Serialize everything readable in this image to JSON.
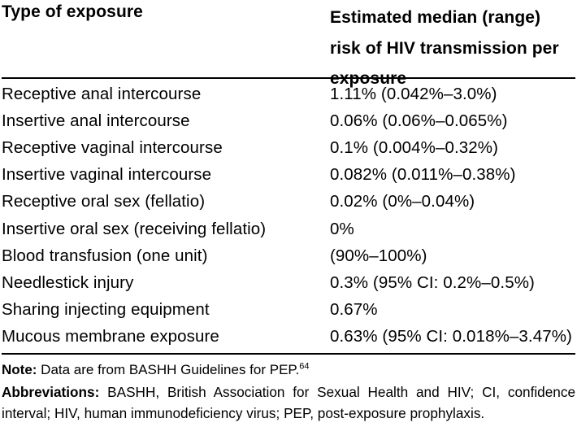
{
  "table": {
    "header": {
      "col1": "Type of exposure",
      "col2": "Estimated median (range) risk of HIV transmission per exposure"
    },
    "rows": [
      {
        "exposure": "Receptive anal intercourse",
        "risk": "1.11% (0.042%–3.0%)"
      },
      {
        "exposure": "Insertive anal intercourse",
        "risk": "0.06% (0.06%–0.065%)"
      },
      {
        "exposure": "Receptive vaginal intercourse",
        "risk": "0.1% (0.004%–0.32%)"
      },
      {
        "exposure": "Insertive vaginal intercourse",
        "risk": "0.082% (0.011%–0.38%)"
      },
      {
        "exposure": "Receptive oral sex (fellatio)",
        "risk": "0.02% (0%–0.04%)"
      },
      {
        "exposure": "Insertive oral sex (receiving fellatio)",
        "risk": "0%"
      },
      {
        "exposure": "Blood transfusion (one unit)",
        "risk": "(90%–100%)"
      },
      {
        "exposure": "Needlestick injury",
        "risk": "0.3% (95% CI: 0.2%–0.5%)"
      },
      {
        "exposure": "Sharing injecting equipment",
        "risk": "0.67%"
      },
      {
        "exposure": "Mucous membrane exposure",
        "risk": "0.63% (95% CI: 0.018%–3.47%)"
      }
    ],
    "note_label": "Note:",
    "note_text": " Data are from BASHH Guidelines for PEP.",
    "note_ref": "64",
    "abbreviations_label": "Abbreviations:",
    "abbreviations_text": " BASHH, British Association for Sexual Health and HIV; CI, confidence interval; HIV, human immunodeficiency virus; PEP, post-exposure prophylaxis."
  },
  "colors": {
    "text": "#000000",
    "background": "#ffffff",
    "rule": "#000000"
  }
}
